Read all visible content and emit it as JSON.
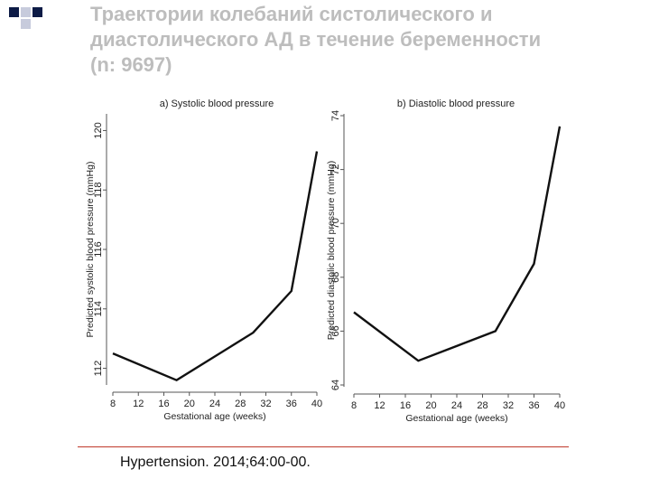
{
  "slide": {
    "title": "Траектории колебаний систолического и диастолического АД в течение беременности (n: 9697)",
    "citation": "Hypertension. 2014;64:00-00."
  },
  "colors": {
    "decor_dark": "#0d1b46",
    "decor_light": "#c7cbdc",
    "rule": "#c0392b",
    "line": "#111111"
  },
  "chart_data": [
    {
      "type": "line",
      "title": "a) Systolic blood pressure",
      "xlabel": "Gestational age (weeks)",
      "ylabel": "Predicted systolic blood pressure (mmHg)",
      "x_ticks": [
        "8",
        "12",
        "16",
        "20",
        "24",
        "28",
        "32",
        "36",
        "40"
      ],
      "y_ticks": [
        "112",
        "114",
        "116",
        "118",
        "120"
      ],
      "xlim": [
        8,
        40
      ],
      "ylim": [
        111.5,
        120.5
      ],
      "grid": false,
      "x": [
        8,
        18,
        30,
        36,
        40
      ],
      "y": [
        112.5,
        111.6,
        113.2,
        114.6,
        119.3
      ]
    },
    {
      "type": "line",
      "title": "b) Diastolic blood pressure",
      "xlabel": "Gestational age (weeks)",
      "ylabel": "Predicted diastolic blood pressure (mmHg)",
      "x_ticks": [
        "8",
        "12",
        "16",
        "20",
        "24",
        "28",
        "32",
        "36",
        "40"
      ],
      "y_ticks": [
        "64",
        "66",
        "68",
        "70",
        "72",
        "74"
      ],
      "xlim": [
        8,
        40
      ],
      "ylim": [
        64,
        74
      ],
      "grid": false,
      "x": [
        8,
        18,
        30,
        36,
        40
      ],
      "y": [
        66.7,
        64.9,
        66.0,
        68.5,
        73.6
      ]
    }
  ]
}
